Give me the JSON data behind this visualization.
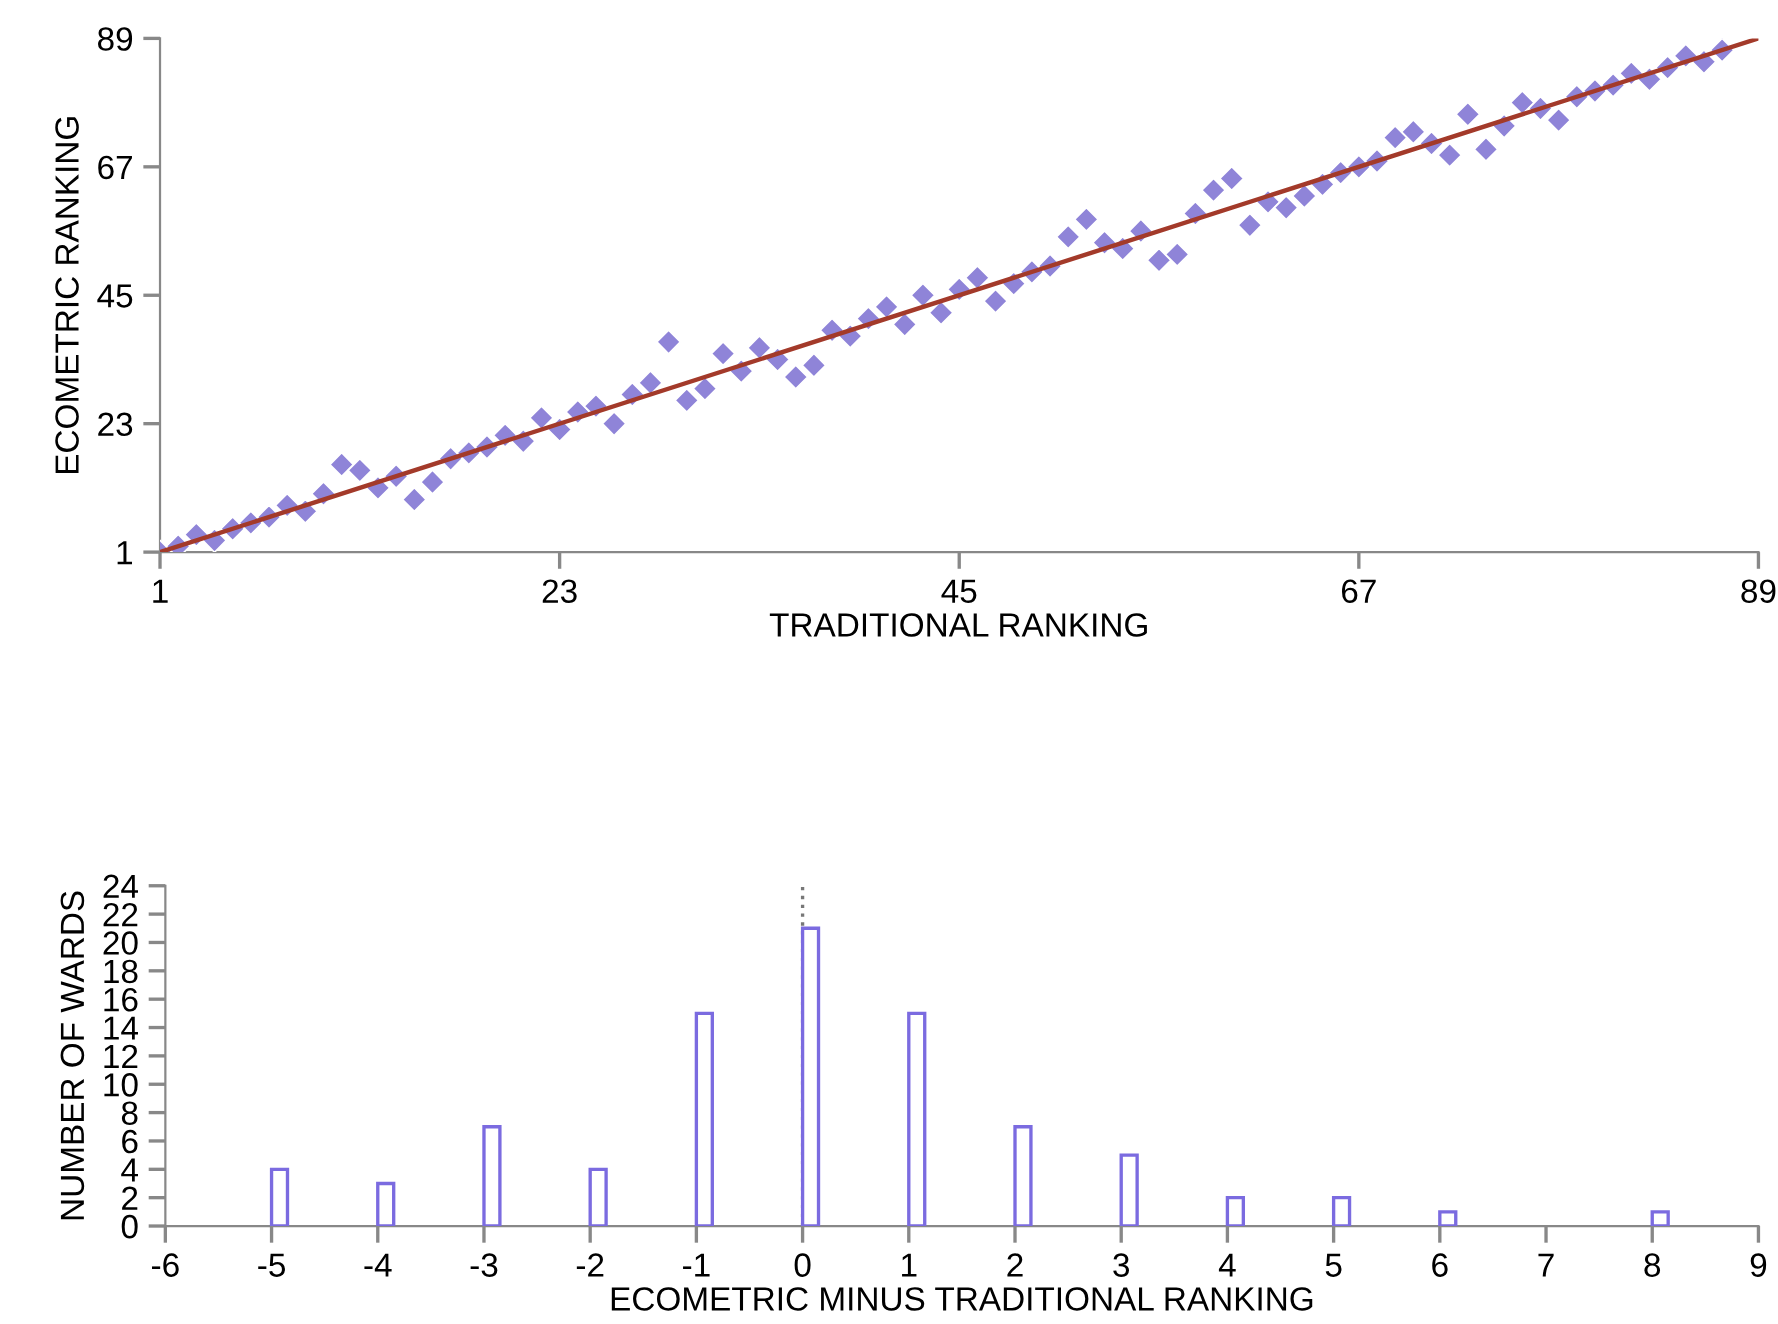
{
  "chart_data": [
    {
      "type": "scatter",
      "xlabel": "TRADITIONAL RANKING",
      "ylabel": "ECOMETRIC RANKING",
      "xlim": [
        1,
        89
      ],
      "ylim": [
        1,
        89
      ],
      "xticks": [
        1,
        23,
        45,
        67,
        89
      ],
      "yticks": [
        1,
        23,
        45,
        67,
        89
      ],
      "grid": false,
      "marker": "diamond",
      "series": [
        {
          "type": "scatter",
          "color": "#8f84d8",
          "x": [
            1,
            2,
            3,
            4,
            5,
            6,
            7,
            8,
            9,
            10,
            11,
            12,
            13,
            14,
            15,
            16,
            17,
            18,
            19,
            20,
            21,
            22,
            23,
            24,
            25,
            26,
            27,
            28,
            29,
            30,
            31,
            32,
            33,
            34,
            35,
            36,
            37,
            38,
            39,
            40,
            41,
            42,
            43,
            44,
            45,
            46,
            47,
            48,
            49,
            50,
            51,
            52,
            53,
            54,
            55,
            56,
            57,
            58,
            59,
            60,
            61,
            62,
            63,
            64,
            65,
            66,
            67,
            68,
            69,
            70,
            71,
            72,
            73,
            74,
            75,
            76,
            77,
            78,
            79,
            80,
            81,
            82,
            83,
            84,
            85,
            86,
            87
          ],
          "values": [
            1,
            2,
            4,
            3,
            5,
            6,
            7,
            9,
            8,
            11,
            16,
            15,
            12,
            14,
            10,
            13,
            17,
            18,
            19,
            21,
            20,
            24,
            22,
            25,
            26,
            23,
            28,
            30,
            37,
            27,
            29,
            35,
            32,
            36,
            34,
            31,
            33,
            39,
            38,
            41,
            43,
            40,
            45,
            42,
            46,
            48,
            44,
            47,
            49,
            50,
            55,
            58,
            54,
            53,
            56,
            51,
            52,
            59,
            63,
            65,
            57,
            61,
            60,
            62,
            64,
            66,
            67,
            68,
            72,
            73,
            71,
            69,
            76,
            70,
            74,
            78,
            77,
            75,
            79,
            80,
            81,
            83,
            82,
            84,
            86,
            85,
            87
          ]
        },
        {
          "type": "line",
          "color": "#a33a2a",
          "x": [
            1,
            89
          ],
          "values": [
            1,
            89
          ],
          "marker": "none",
          "line_style": "solid"
        }
      ]
    },
    {
      "type": "bar",
      "xlabel": "ECOMETRIC MINUS TRADITIONAL RANKING",
      "ylabel": "NUMBER OF WARDS",
      "xlim": [
        -6,
        9
      ],
      "ylim": [
        0,
        24
      ],
      "xticks": [
        -6,
        -5,
        -4,
        -3,
        -2,
        -1,
        0,
        1,
        2,
        3,
        4,
        5,
        6,
        7,
        8,
        9
      ],
      "yticks": [
        0,
        2,
        4,
        6,
        8,
        10,
        12,
        14,
        16,
        18,
        20,
        22,
        24
      ],
      "grid": false,
      "x": [
        -5,
        -4,
        -3,
        -2,
        -1,
        0,
        1,
        2,
        3,
        4,
        5,
        6,
        8
      ],
      "series": [
        {
          "color": "#7b6be0",
          "values": [
            4,
            3,
            7,
            4,
            15,
            21,
            15,
            7,
            5,
            2,
            2,
            1,
            1
          ]
        }
      ],
      "ref_lines": [
        {
          "axis": "x",
          "value": 0,
          "color": "#777777",
          "line_style": "dotted"
        }
      ]
    }
  ]
}
